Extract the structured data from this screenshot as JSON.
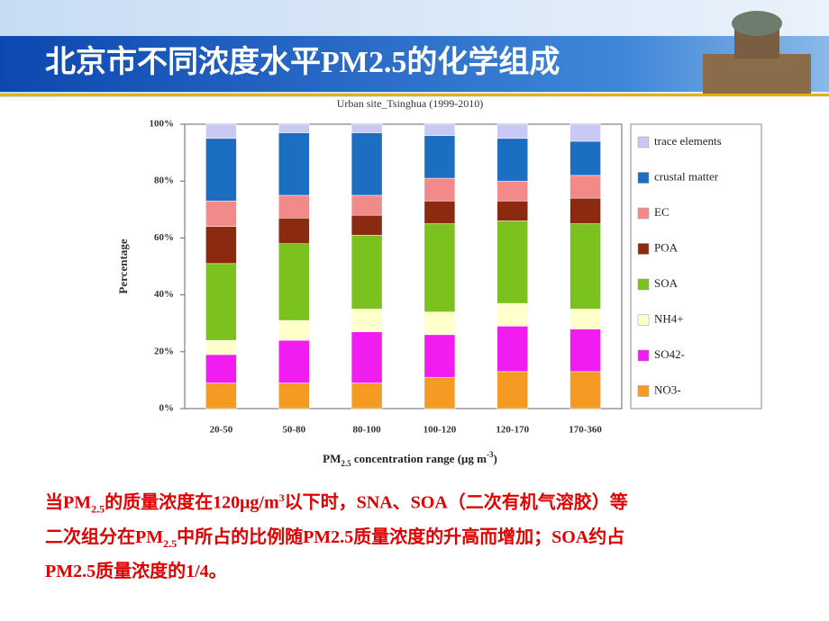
{
  "slide": {
    "title": "北京市不同浓度水平PM2.5的化学组成",
    "caption": [
      [
        "当PM",
        "2.5",
        "的质量浓度在120μg/m",
        "3",
        "以下时，SNA、SOA（二次有机气溶胶）等"
      ],
      [
        "二次组分在PM",
        "2.5",
        "中所占的比例随PM2.5质量浓度的升高而增加；SOA约占"
      ],
      [
        "PM2.5质量浓度的1/4。"
      ]
    ]
  },
  "chart_data": {
    "type": "stacked_bar",
    "title": "Urban site_Tsinghua (1999-2010)",
    "ylabel": "Percentage",
    "xlabel": [
      "PM",
      "2.5",
      " concentration range (μg m",
      "-3",
      ")"
    ],
    "categories": [
      "20-50",
      "50-80",
      "80-100",
      "100-120",
      "120-170",
      "170-360"
    ],
    "series": [
      {
        "name": "NO3-",
        "color": "#f59a23",
        "values": [
          9,
          9,
          9,
          11,
          13,
          13
        ]
      },
      {
        "name": "SO42-",
        "color": "#f01cf0",
        "values": [
          10,
          15,
          18,
          15,
          16,
          15
        ]
      },
      {
        "name": "NH4+",
        "color": "#ffffcc",
        "values": [
          5,
          7,
          8,
          8,
          8,
          7
        ]
      },
      {
        "name": "SOA",
        "color": "#7cc21e",
        "values": [
          27,
          27,
          26,
          31,
          29,
          30
        ]
      },
      {
        "name": "POA",
        "color": "#8b2a10",
        "values": [
          13,
          9,
          7,
          8,
          7,
          9
        ]
      },
      {
        "name": "EC",
        "color": "#f28a8a",
        "values": [
          9,
          8,
          7,
          8,
          7,
          8
        ]
      },
      {
        "name": "crustal matter",
        "color": "#1b6ec2",
        "values": [
          22,
          22,
          22,
          15,
          15,
          12
        ]
      },
      {
        "name": "trace elements",
        "color": "#c9c9f5",
        "values": [
          5,
          3,
          3,
          4,
          5,
          6
        ]
      }
    ],
    "ylim": [
      0,
      100
    ],
    "yticks": [
      {
        "value": 0,
        "label": "0%"
      },
      {
        "value": 20,
        "label": "20%"
      },
      {
        "value": 40,
        "label": "40%"
      },
      {
        "value": 60,
        "label": "60%"
      },
      {
        "value": 80,
        "label": "80%"
      },
      {
        "value": 100,
        "label": "100%"
      }
    ],
    "grid": false,
    "legend": "right"
  }
}
